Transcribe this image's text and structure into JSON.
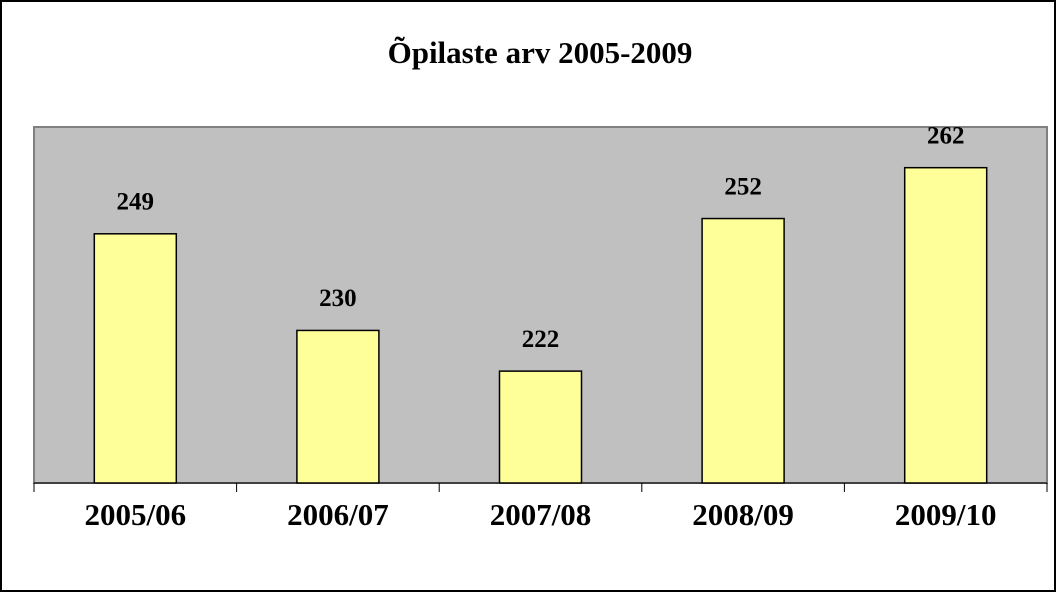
{
  "chart_data": {
    "type": "bar",
    "title": "Õpilaste arv 2005-2009",
    "categories": [
      "2005/06",
      "2006/07",
      "2007/08",
      "2008/09",
      "2009/10"
    ],
    "values": [
      249,
      230,
      222,
      252,
      262
    ],
    "color": "#ffff99",
    "ylim": [
      200,
      270
    ]
  }
}
